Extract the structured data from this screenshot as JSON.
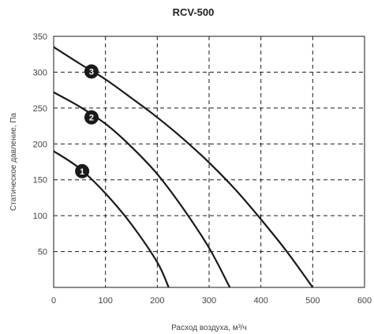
{
  "chart_data": {
    "type": "line",
    "title": "RCV-500",
    "xlabel": "Расход воздуха, м³/ч",
    "ylabel": "Статическое давление, Па",
    "xlim": [
      0,
      600
    ],
    "ylim": [
      0,
      350
    ],
    "xticks": [
      0,
      100,
      200,
      300,
      400,
      500,
      600
    ],
    "yticks": [
      50,
      100,
      150,
      200,
      250,
      300,
      350
    ],
    "grid": true,
    "series": [
      {
        "name": "1",
        "marker_at": {
          "x": 55,
          "y": 162
        },
        "x": [
          0,
          50,
          100,
          150,
          200,
          222
        ],
        "y": [
          190,
          166,
          131,
          88,
          35,
          0
        ]
      },
      {
        "name": "2",
        "marker_at": {
          "x": 73,
          "y": 237
        },
        "x": [
          0,
          50,
          100,
          150,
          200,
          250,
          300,
          340
        ],
        "y": [
          272,
          252,
          228,
          196,
          158,
          110,
          55,
          0
        ]
      },
      {
        "name": "3",
        "marker_at": {
          "x": 73,
          "y": 301
        },
        "x": [
          0,
          50,
          100,
          150,
          200,
          250,
          300,
          350,
          400,
          450,
          500
        ],
        "y": [
          335,
          312,
          290,
          264,
          237,
          207,
          174,
          137,
          95,
          50,
          0
        ]
      }
    ]
  }
}
